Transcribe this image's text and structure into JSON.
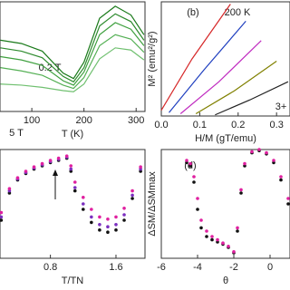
{
  "chart_data": [
    {
      "type": "line",
      "xlabel": "T (K)",
      "xlim": [
        39,
        317
      ],
      "ylim": [
        0,
        10
      ],
      "xticks": [
        100,
        200,
        300
      ],
      "annotations": [
        "0.2 T",
        "5 T"
      ],
      "series": [
        {
          "color": "#1a7a1a",
          "x": [
            40,
            80,
            120,
            160,
            180,
            200,
            230,
            260,
            290,
            315
          ],
          "values": [
            6.5,
            6.2,
            5.5,
            3.5,
            3.0,
            4.5,
            8.5,
            9.6,
            8.8,
            7.0
          ]
        },
        {
          "color": "#2e8b2e",
          "x": [
            40,
            80,
            120,
            160,
            180,
            200,
            230,
            260,
            290,
            315
          ],
          "values": [
            5.8,
            5.5,
            4.9,
            3.2,
            2.7,
            4.0,
            7.8,
            8.9,
            8.2,
            6.5
          ]
        },
        {
          "color": "#3fa03f",
          "x": [
            40,
            80,
            120,
            160,
            180,
            200,
            230,
            260,
            290,
            315
          ],
          "values": [
            5.0,
            4.7,
            4.2,
            2.8,
            2.4,
            3.6,
            7.0,
            8.1,
            7.5,
            6.0
          ]
        },
        {
          "color": "#55b055",
          "x": [
            40,
            80,
            120,
            160,
            180,
            200,
            230,
            260,
            290,
            315
          ],
          "values": [
            4.0,
            3.7,
            3.3,
            2.4,
            2.1,
            3.1,
            6.0,
            7.0,
            6.6,
            5.4
          ]
        },
        {
          "color": "#70c070",
          "x": [
            40,
            80,
            120,
            160,
            180,
            200,
            230,
            260,
            290,
            315
          ],
          "values": [
            2.5,
            2.4,
            2.2,
            1.9,
            1.8,
            2.5,
            4.8,
            5.8,
            5.6,
            4.7
          ]
        }
      ]
    },
    {
      "type": "line",
      "panel_label": "(b)",
      "xlabel": "H/M (gT/emu)",
      "ylabel": "M² (emu²/g²)",
      "xlim": [
        0,
        0.335
      ],
      "ylim": [
        0,
        10
      ],
      "xticks": [
        {
          "value": 0,
          "label": "0.0"
        },
        0.1,
        0.2,
        0.3
      ],
      "annotations": [
        "200 K",
        "3+"
      ],
      "series": [
        {
          "color": "#d62728",
          "x": [
            0.0,
            0.08,
            0.18
          ],
          "values": [
            0.5,
            5.0,
            9.8
          ]
        },
        {
          "color": "#1f3fbf",
          "x": [
            0.02,
            0.11,
            0.22
          ],
          "values": [
            0.3,
            4.0,
            8.3
          ]
        },
        {
          "color": "#c02cc0",
          "x": [
            0.05,
            0.15,
            0.26
          ],
          "values": [
            0.2,
            3.0,
            6.6
          ]
        },
        {
          "color": "#808000",
          "x": [
            0.09,
            0.19,
            0.3
          ],
          "values": [
            0.2,
            2.2,
            4.8
          ]
        },
        {
          "color": "#222222",
          "x": [
            0.14,
            0.23,
            0.33
          ],
          "values": [
            0.1,
            1.4,
            3.0
          ]
        }
      ]
    },
    {
      "type": "scatter",
      "xlabel": "T/TN",
      "xlim": [
        0.185,
        1.954
      ],
      "ylim": [
        0,
        1
      ],
      "xticks": [
        0.8,
        1.6
      ],
      "series": [
        {
          "color": "#111111",
          "x": [
            0.2,
            0.3,
            0.4,
            0.5,
            0.6,
            0.7,
            0.8,
            0.9,
            1.0,
            1.05,
            1.1,
            1.2,
            1.3,
            1.4,
            1.5,
            1.6,
            1.7,
            1.8,
            1.9
          ],
          "values": [
            0.35,
            0.6,
            0.72,
            0.78,
            0.82,
            0.85,
            0.88,
            0.9,
            0.92,
            0.8,
            0.62,
            0.45,
            0.33,
            0.26,
            0.24,
            0.26,
            0.35,
            0.55,
            0.8
          ]
        },
        {
          "color": "#7b2fbf",
          "x": [
            0.2,
            0.3,
            0.4,
            0.5,
            0.6,
            0.7,
            0.8,
            0.9,
            1.0,
            1.05,
            1.1,
            1.2,
            1.3,
            1.4,
            1.5,
            1.6,
            1.7,
            1.8,
            1.9
          ],
          "values": [
            0.38,
            0.62,
            0.73,
            0.79,
            0.83,
            0.86,
            0.89,
            0.91,
            0.93,
            0.82,
            0.65,
            0.5,
            0.38,
            0.31,
            0.29,
            0.31,
            0.4,
            0.58,
            0.82
          ]
        },
        {
          "color": "#e020a0",
          "x": [
            0.2,
            0.3,
            0.4,
            0.5,
            0.6,
            0.7,
            0.8,
            0.9,
            1.0,
            1.05,
            1.1,
            1.2,
            1.3,
            1.4,
            1.5,
            1.6,
            1.7,
            1.8,
            1.9
          ],
          "values": [
            0.42,
            0.64,
            0.74,
            0.8,
            0.84,
            0.87,
            0.9,
            0.92,
            0.94,
            0.85,
            0.7,
            0.56,
            0.45,
            0.38,
            0.36,
            0.38,
            0.46,
            0.62,
            0.84
          ]
        }
      ]
    },
    {
      "type": "scatter",
      "panel_label": "(d)",
      "xlabel": "θ",
      "ylabel": "ΔSM/ΔSMmax",
      "xlim": [
        -6,
        1.1
      ],
      "ylim": [
        0,
        1
      ],
      "xticks": [
        -6,
        -4,
        -2,
        0
      ],
      "series": [
        {
          "color": "#111111",
          "x": [
            -4.6,
            -4.4,
            -4.2,
            -4.0,
            -3.8,
            -3.5,
            -3.2,
            -2.9,
            -2.6,
            -2.3,
            -2.0,
            -1.8,
            -1.6,
            -1.4,
            -1.0,
            -0.6,
            -0.2,
            0.2,
            0.6,
            1.0
          ],
          "values": [
            0.88,
            0.85,
            0.7,
            0.45,
            0.28,
            0.2,
            0.17,
            0.15,
            0.13,
            0.1,
            0.05,
            0.25,
            0.6,
            0.85,
            0.97,
            0.99,
            0.96,
            0.88,
            0.72,
            0.5
          ]
        },
        {
          "color": "#e020a0",
          "x": [
            -4.6,
            -4.4,
            -4.2,
            -4.0,
            -3.8,
            -3.5,
            -3.2,
            -2.9,
            -2.6,
            -2.3,
            -2.0,
            -1.8,
            -1.6,
            -1.4,
            -1.0,
            -0.6,
            -0.2,
            0.2,
            0.6,
            1.0
          ],
          "values": [
            0.9,
            0.87,
            0.75,
            0.55,
            0.35,
            0.25,
            0.2,
            0.17,
            0.14,
            0.11,
            0.06,
            0.28,
            0.63,
            0.87,
            0.98,
            1.0,
            0.97,
            0.9,
            0.75,
            0.55
          ]
        }
      ]
    }
  ]
}
